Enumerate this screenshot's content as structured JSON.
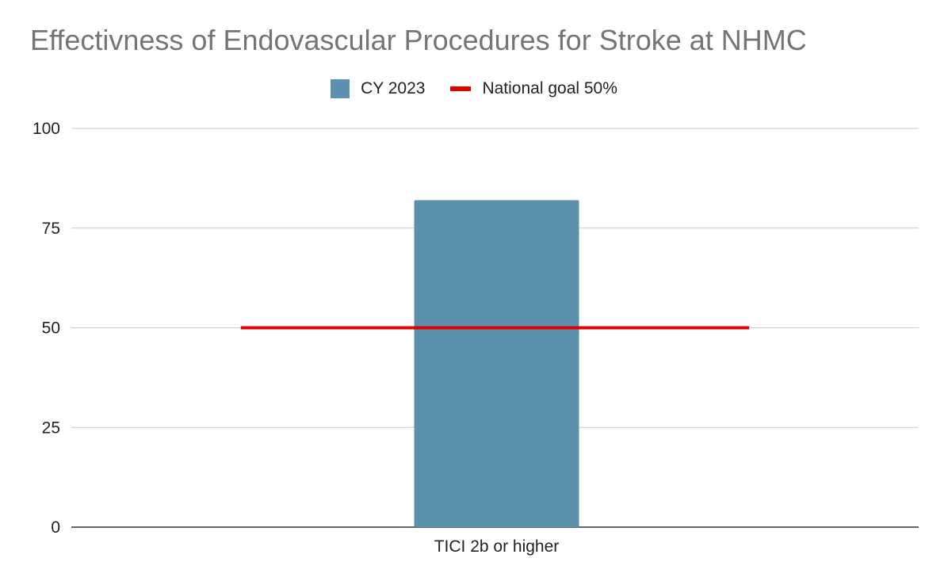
{
  "chart_data": {
    "type": "bar",
    "title": "Effectivness of Endovascular Procedures for Stroke at NHMC",
    "categories": [
      "TICI 2b or higher"
    ],
    "series": [
      {
        "name": "CY 2023",
        "values": [
          82
        ],
        "color": "#5a91ad"
      }
    ],
    "reference_lines": [
      {
        "name": "National goal 50%",
        "value": 50,
        "color": "#e00000"
      }
    ],
    "xlabel": "",
    "ylabel": "",
    "ylim": [
      0,
      100
    ],
    "yticks": [
      "0",
      "25",
      "50",
      "75",
      "100"
    ],
    "grid": true,
    "legend_position": "top-center"
  }
}
